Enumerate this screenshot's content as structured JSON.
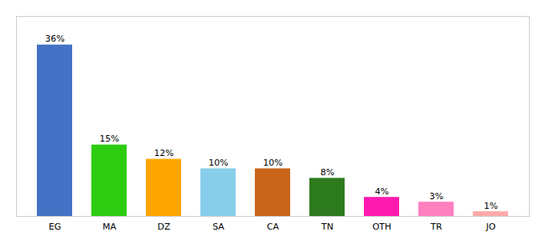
{
  "chart_data": {
    "type": "bar",
    "categories": [
      "EG",
      "MA",
      "DZ",
      "SA",
      "CA",
      "TN",
      "OTH",
      "TR",
      "JO"
    ],
    "values": [
      36,
      15,
      12,
      10,
      10,
      8,
      4,
      3,
      1
    ],
    "value_labels": [
      "36%",
      "15%",
      "12%",
      "10%",
      "10%",
      "8%",
      "4%",
      "3%",
      "1%"
    ],
    "colors": [
      "#4472c4",
      "#2ecc11",
      "#ffa500",
      "#87ceeb",
      "#c8651a",
      "#2d7a1e",
      "#ff1aaf",
      "#ff80bf",
      "#ffaaaa"
    ],
    "ylim": [
      0,
      42
    ],
    "data_labels": true,
    "tick_labels": "x"
  }
}
